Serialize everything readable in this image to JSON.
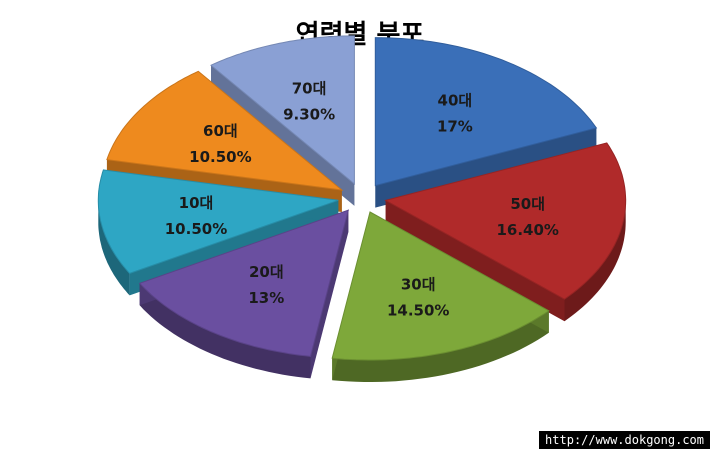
{
  "chart_data": {
    "type": "pie",
    "title": "연령별 분포",
    "slices": [
      {
        "label": "40대",
        "value_text": "17%",
        "value": 17.0,
        "color": "#3a6fb8"
      },
      {
        "label": "50대",
        "value_text": "16.40%",
        "value": 16.4,
        "color": "#b02a2a"
      },
      {
        "label": "30대",
        "value_text": "14.50%",
        "value": 14.5,
        "color": "#7ea83a"
      },
      {
        "label": "20대",
        "value_text": "13%",
        "value": 13.0,
        "color": "#6a4fa0"
      },
      {
        "label": "10대",
        "value_text": "10.50%",
        "value": 10.5,
        "color": "#2ea6c4"
      },
      {
        "label": "60대",
        "value_text": "10.50%",
        "value": 10.5,
        "color": "#ee8a1e"
      },
      {
        "label": "70대",
        "value_text": "9.30%",
        "value": 9.3,
        "color": "#8aa0d4"
      }
    ]
  },
  "watermark": "http://www.dokgong.com"
}
